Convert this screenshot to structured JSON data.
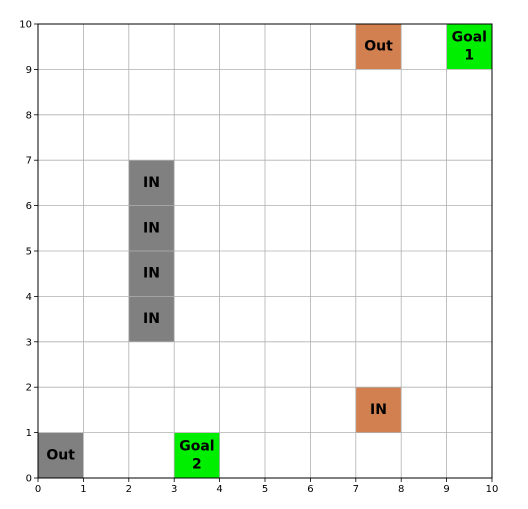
{
  "grid": {
    "x_range": [
      0,
      10
    ],
    "y_range": [
      0,
      10
    ],
    "x_ticks": [
      "0",
      "1",
      "2",
      "3",
      "4",
      "5",
      "6",
      "7",
      "8",
      "9",
      "10"
    ],
    "y_ticks": [
      "0",
      "1",
      "2",
      "3",
      "4",
      "5",
      "6",
      "7",
      "8",
      "9",
      "10"
    ],
    "grid_lines": true
  },
  "colors": {
    "grey": "#808080",
    "orange": "#d2804f",
    "green": "#00ee00"
  },
  "cells": [
    {
      "name": "cell-in-2-6",
      "col": 2,
      "row": 6,
      "color": "grey",
      "label": [
        "IN"
      ]
    },
    {
      "name": "cell-in-2-5",
      "col": 2,
      "row": 5,
      "color": "grey",
      "label": [
        "IN"
      ]
    },
    {
      "name": "cell-in-2-4",
      "col": 2,
      "row": 4,
      "color": "grey",
      "label": [
        "IN"
      ]
    },
    {
      "name": "cell-in-2-3",
      "col": 2,
      "row": 3,
      "color": "grey",
      "label": [
        "IN"
      ]
    },
    {
      "name": "cell-out-0-0",
      "col": 0,
      "row": 0,
      "color": "grey",
      "label": [
        "Out"
      ]
    },
    {
      "name": "cell-out-7-9",
      "col": 7,
      "row": 9,
      "color": "orange",
      "label": [
        "Out"
      ]
    },
    {
      "name": "cell-in-7-1",
      "col": 7,
      "row": 1,
      "color": "orange",
      "label": [
        "IN"
      ]
    },
    {
      "name": "cell-goal-9-9",
      "col": 9,
      "row": 9,
      "color": "green",
      "label": [
        "Goal",
        "1"
      ]
    },
    {
      "name": "cell-goal-3-0",
      "col": 3,
      "row": 0,
      "color": "green",
      "label": [
        "Goal",
        "2"
      ]
    }
  ]
}
